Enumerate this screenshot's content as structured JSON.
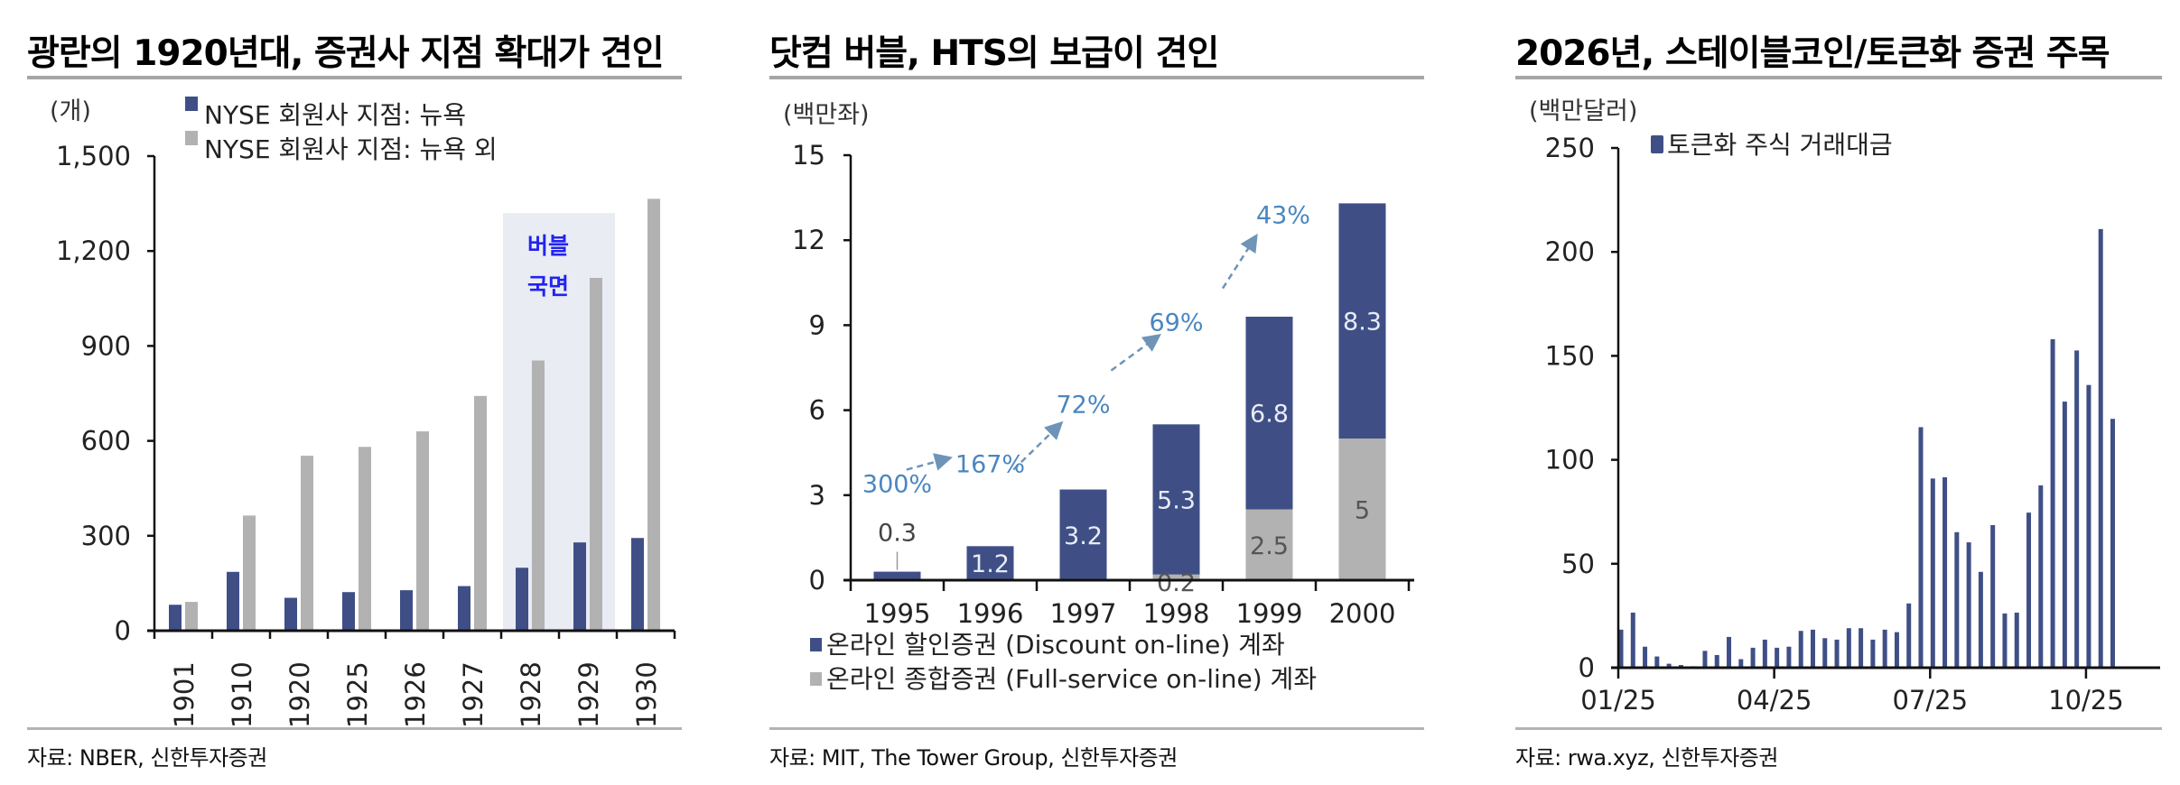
{
  "colors": {
    "navy": "#3f4f86",
    "gray": "#b2b2b2",
    "bubble_shade": "#e9ecf3",
    "bubble_text": "#2323ee",
    "growth": "#4a86c0",
    "arrow": "#6e94b8"
  },
  "chart_data": [
    {
      "id": "branches",
      "type": "bar",
      "title": "광란의 1920년대, 증권사 지점 확대가 견인",
      "unit": "(개)",
      "categories": [
        "1901",
        "1910",
        "1920",
        "1925",
        "1926",
        "1927",
        "1928",
        "1929",
        "1930"
      ],
      "series": [
        {
          "name": "NYSE 회원사 지점: 뉴욕",
          "color_key": "navy",
          "values": [
            82,
            186,
            104,
            122,
            128,
            141,
            199,
            279,
            293
          ]
        },
        {
          "name": "NYSE 회원사 지점: 뉴욕 외",
          "color_key": "gray",
          "values": [
            91,
            364,
            553,
            581,
            630,
            742,
            854,
            1115,
            1365
          ]
        }
      ],
      "ylim": [
        0,
        1500
      ],
      "yticks": [
        0,
        300,
        600,
        900,
        1200,
        1500
      ],
      "ytick_labels": [
        "0",
        "300",
        "600",
        "900",
        "1,200",
        "1,500"
      ],
      "xlabel_rotation": "vertical",
      "legend_position": "top-left",
      "annotation": {
        "lines": [
          "버블",
          "국면"
        ],
        "span": [
          "1928",
          "1929"
        ],
        "ytop": 1320
      },
      "source": "자료: NBER, 신한투자증권"
    },
    {
      "id": "hts",
      "type": "bar",
      "stacked": true,
      "title": "닷컴 버블, HTS의 보급이 견인",
      "unit": "(백만좌)",
      "categories": [
        "1995",
        "1996",
        "1997",
        "1998",
        "1999",
        "2000"
      ],
      "series": [
        {
          "name": "온라인 종합증권 (Full-service on-line) 계좌",
          "color_key": "gray",
          "values": [
            0,
            0,
            0,
            0.2,
            2.5,
            5
          ],
          "labels": [
            "",
            "",
            "",
            "0.2",
            "2.5",
            "5"
          ]
        },
        {
          "name": "온라인 할인증권 (Discount on-line) 계좌",
          "color_key": "navy",
          "values": [
            0.3,
            1.2,
            3.2,
            5.3,
            6.8,
            8.3
          ],
          "labels": [
            "0.3",
            "1.2",
            "3.2",
            "5.3",
            "6.8",
            "8.3"
          ]
        }
      ],
      "legend_order": [
        1,
        0
      ],
      "ylim": [
        0,
        15
      ],
      "yticks": [
        0,
        3,
        6,
        9,
        12,
        15
      ],
      "ytick_labels": [
        "0",
        "3",
        "6",
        "9",
        "12",
        "15"
      ],
      "legend_position": "bottom",
      "growth_annotations": [
        {
          "label": "300%",
          "x": 0,
          "y": 3.1
        },
        {
          "label": "167%",
          "x": 1,
          "y": 3.8
        },
        {
          "label": "72%",
          "x": 2,
          "y": 5.9
        },
        {
          "label": "69%",
          "x": 3,
          "y": 8.8
        },
        {
          "label": "43%",
          "x": 4.15,
          "y": 12.6
        }
      ],
      "growth_arrows": [
        {
          "from": [
            0.1,
            3.9
          ],
          "to": [
            0.55,
            4.3
          ]
        },
        {
          "from": [
            1.25,
            3.9
          ],
          "to": [
            1.75,
            5.5
          ]
        },
        {
          "from": [
            2.3,
            7.4
          ],
          "to": [
            2.8,
            8.6
          ]
        },
        {
          "from": [
            3.5,
            10.3
          ],
          "to": [
            3.85,
            12.1
          ]
        }
      ],
      "source": "자료: MIT, The Tower Group, 신한투자증권"
    },
    {
      "id": "tokenized",
      "type": "bar",
      "title": "2026년, 스테이블코인/토큰화 증권 주목",
      "unit": "(백만달러)",
      "series": [
        {
          "name": "토큰화 주식 거래대금",
          "color_key": "navy",
          "values": [
            18.3,
            26.5,
            10.1,
            5.4,
            1.9,
            1.3,
            0.7,
            8.1,
            6.1,
            14.8,
            4.1,
            9.6,
            13.5,
            9.6,
            10.1,
            17.7,
            18.3,
            14.2,
            13.5,
            19.0,
            19.0,
            13.5,
            18.3,
            17.1,
            30.9,
            115.7,
            91.0,
            91.6,
            65.2,
            60.3,
            46.1,
            68.6,
            26.1,
            26.5,
            74.6,
            87.7,
            158.0,
            128.0,
            152.6,
            136.0,
            211.0,
            119.7
          ]
        }
      ],
      "frequency": "weekly",
      "xticks": [
        {
          "label": "01/25",
          "index": 0
        },
        {
          "label": "04/25",
          "index": 13
        },
        {
          "label": "07/25",
          "index": 26
        },
        {
          "label": "10/25",
          "index": 39
        }
      ],
      "ylim": [
        0,
        250
      ],
      "yticks": [
        0,
        50,
        100,
        150,
        200,
        250
      ],
      "ytick_labels": [
        "0",
        "50",
        "100",
        "150",
        "200",
        "250"
      ],
      "legend_position": "top-left",
      "source": "자료: rwa.xyz, 신한투자증권"
    }
  ]
}
